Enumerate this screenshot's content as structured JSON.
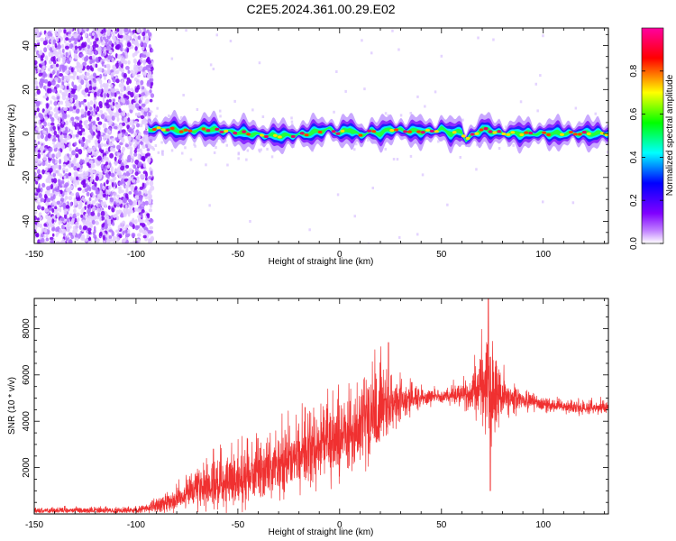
{
  "figure": {
    "title": "C2E5.2024.361.00.29.E02"
  },
  "chart_data": [
    {
      "type": "heatmap",
      "title": "C2E5.2024.361.00.29.E02",
      "xlabel": "Height of straight line (km)",
      "ylabel": "Frequency (Hz)",
      "xlim": [
        -150,
        132
      ],
      "ylim": [
        -50,
        48
      ],
      "x_ticks": [
        -150,
        -100,
        -50,
        0,
        50,
        100
      ],
      "y_ticks": [
        -40,
        -20,
        0,
        20,
        40
      ],
      "colorbar": {
        "label": "Normalized spectral amplitude",
        "range": [
          0,
          1
        ],
        "ticks": [
          "0.0",
          "0.2",
          "0.4",
          "0.6",
          "0.8"
        ],
        "colormap": [
          "#ffffff",
          "#8000ff",
          "#0000ff",
          "#00ffff",
          "#00ff00",
          "#ffff00",
          "#ff0000",
          "#ff00a0"
        ]
      },
      "noise_region_x": [
        -150,
        -92
      ],
      "signal_region_x": [
        -94,
        132
      ],
      "ridge": {
        "x": [
          -94,
          -85,
          -75,
          -65,
          -55,
          -45,
          -35,
          -25,
          -15,
          -10,
          -5,
          0,
          5,
          10,
          15,
          20,
          25,
          35,
          45,
          50,
          55,
          60,
          62,
          65,
          70,
          75,
          80,
          90,
          100,
          110,
          120,
          132
        ],
        "freq": [
          2,
          2,
          1,
          2,
          1,
          0,
          -1,
          -1,
          0,
          1,
          2,
          0,
          2,
          -1,
          1,
          0,
          2,
          1,
          1,
          2,
          0,
          1,
          -3,
          -1,
          2,
          1,
          0,
          0,
          0,
          0,
          0,
          0
        ]
      }
    },
    {
      "type": "line",
      "xlabel": "Height of straight line (km)",
      "ylabel": "SNR (10 * v/v)",
      "xlim": [
        -150,
        132
      ],
      "ylim": [
        0,
        9300
      ],
      "x_ticks": [
        -150,
        -100,
        -50,
        0,
        50,
        100
      ],
      "y_ticks": [
        2000,
        4000,
        6000,
        8000
      ],
      "color": "#f03030",
      "trend": {
        "x": [
          -150,
          -100,
          -90,
          -80,
          -70,
          -60,
          -50,
          -40,
          -30,
          -20,
          -10,
          0,
          10,
          15,
          20,
          25,
          30,
          40,
          50,
          60,
          65,
          70,
          75,
          80,
          90,
          100,
          110,
          120,
          132
        ],
        "y": [
          150,
          150,
          350,
          650,
          1000,
          1300,
          1500,
          1800,
          2100,
          2400,
          2800,
          3300,
          3800,
          4100,
          4400,
          4700,
          4900,
          5000,
          5100,
          5150,
          5200,
          5400,
          5300,
          5100,
          4900,
          4750,
          4600,
          4550,
          4600
        ]
      },
      "spread": {
        "x": [
          -150,
          -100,
          -90,
          -80,
          -70,
          -60,
          -50,
          -40,
          -30,
          -20,
          -10,
          0,
          10,
          20,
          25,
          30,
          40,
          50,
          60,
          65,
          70,
          75,
          80,
          90,
          100,
          132
        ],
        "y": [
          130,
          150,
          300,
          600,
          900,
          1100,
          1200,
          1300,
          1400,
          1500,
          1650,
          1800,
          2000,
          2000,
          1500,
          800,
          400,
          350,
          500,
          900,
          1900,
          2400,
          900,
          450,
          300,
          300
        ]
      },
      "peaks": [
        {
          "x": -62,
          "y": 2800
        },
        {
          "x": -17,
          "y": 4600
        },
        {
          "x": 12,
          "y": 5800
        },
        {
          "x": 24,
          "y": 7400
        },
        {
          "x": 73,
          "y": 9300
        },
        {
          "x": 74,
          "y": 1000
        }
      ]
    }
  ]
}
